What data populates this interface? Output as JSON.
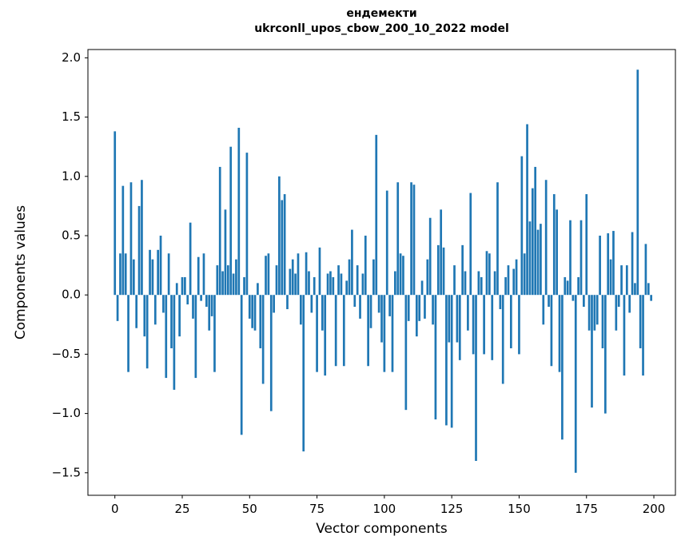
{
  "figure": {
    "title_line1": "ендемекти",
    "title_line2": "ukrconll_upos_cbow_200_10_2022 model",
    "xlabel": "Vector components",
    "ylabel": "Components values"
  },
  "chart_data": {
    "type": "bar",
    "title": "ендемекти / ukrconll_upos_cbow_200_10_2022 model",
    "xlabel": "Vector components",
    "ylabel": "Components values",
    "bar_color": "#1f77b4",
    "spine_color": "#000000",
    "xlim": [
      -10,
      208
    ],
    "ylim": [
      -1.69,
      2.07
    ],
    "xticks": [
      0,
      25,
      50,
      75,
      100,
      125,
      150,
      175,
      200
    ],
    "yticks": [
      2.0,
      1.5,
      1.0,
      0.5,
      0.0,
      -0.5,
      -1.0,
      -1.5
    ],
    "legend": "none",
    "grid": false,
    "values": [
      1.38,
      -0.22,
      0.35,
      0.92,
      0.35,
      -0.65,
      0.95,
      0.3,
      -0.28,
      0.75,
      0.97,
      -0.35,
      -0.62,
      0.38,
      0.3,
      -0.25,
      0.38,
      0.5,
      -0.15,
      -0.7,
      0.35,
      -0.45,
      -0.8,
      0.1,
      -0.35,
      0.15,
      0.15,
      -0.08,
      0.61,
      -0.2,
      -0.7,
      0.32,
      -0.05,
      0.35,
      -0.1,
      -0.3,
      -0.18,
      -0.65,
      0.25,
      1.08,
      0.2,
      0.72,
      0.25,
      1.25,
      0.18,
      0.3,
      1.41,
      -1.18,
      0.15,
      1.2,
      -0.2,
      -0.28,
      -0.3,
      0.1,
      -0.45,
      -0.75,
      0.33,
      0.35,
      -0.98,
      -0.15,
      0.25,
      1.0,
      0.8,
      0.85,
      -0.12,
      0.22,
      0.3,
      0.18,
      0.35,
      -0.25,
      -1.32,
      0.36,
      0.2,
      -0.15,
      0.15,
      -0.65,
      0.4,
      -0.3,
      -0.68,
      0.18,
      0.2,
      0.15,
      -0.6,
      0.25,
      0.18,
      -0.6,
      0.12,
      0.3,
      0.55,
      -0.1,
      0.25,
      -0.2,
      0.18,
      0.5,
      -0.6,
      -0.28,
      0.3,
      1.35,
      -0.15,
      -0.4,
      -0.65,
      0.88,
      -0.18,
      -0.65,
      0.2,
      0.95,
      0.35,
      0.33,
      -0.97,
      -0.22,
      0.95,
      0.93,
      -0.35,
      -0.22,
      0.12,
      -0.2,
      0.3,
      0.65,
      -0.25,
      -1.05,
      0.42,
      0.72,
      0.4,
      -1.1,
      -0.4,
      -1.12,
      0.25,
      -0.4,
      -0.55,
      0.42,
      0.2,
      -0.3,
      0.86,
      -0.5,
      -1.4,
      0.2,
      0.15,
      -0.5,
      0.37,
      0.35,
      -0.55,
      0.2,
      0.95,
      -0.12,
      -0.75,
      0.15,
      0.25,
      -0.45,
      0.22,
      0.3,
      -0.5,
      1.17,
      0.35,
      1.44,
      0.62,
      0.9,
      1.08,
      0.55,
      0.6,
      -0.25,
      0.97,
      -0.1,
      -0.6,
      0.85,
      0.72,
      -0.65,
      -1.22,
      0.15,
      0.12,
      0.63,
      -0.05,
      -1.5,
      0.15,
      0.63,
      -0.1,
      0.85,
      -0.3,
      -0.95,
      -0.3,
      -0.25,
      0.5,
      -0.45,
      -1.0,
      0.52,
      0.3,
      0.54,
      -0.3,
      -0.1,
      0.25,
      -0.68,
      0.25,
      -0.15,
      0.53,
      0.1,
      1.9,
      -0.45,
      -0.68,
      0.43,
      0.1,
      -0.05
    ]
  }
}
